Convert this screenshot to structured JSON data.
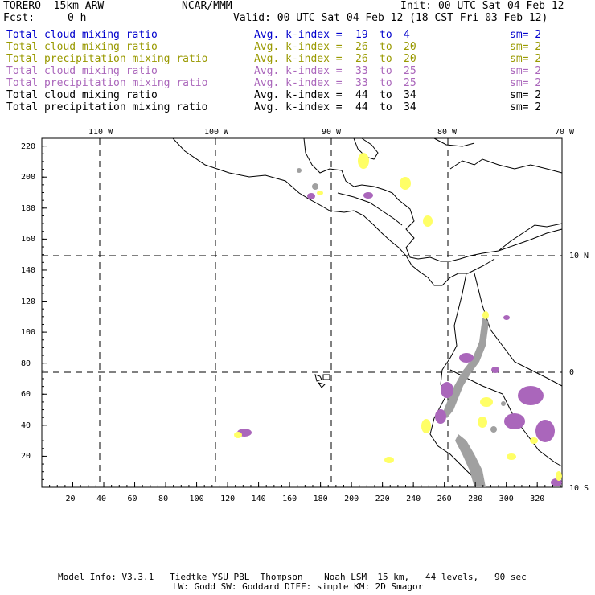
{
  "header": {
    "model_name": "TORERO  15km ARW",
    "center": "NCAR/MMM",
    "init": "Init: 00 UTC Sat 04 Feb 12",
    "fcst_label": "Fcst:",
    "fcst_value": "0 h",
    "valid": "Valid: 00 UTC Sat 04 Feb 12 (18 CST Fri 03 Feb 12)"
  },
  "legend": [
    {
      "field": "Total cloud mixing ratio",
      "kindex": "Avg. k-index =",
      "from": "19",
      "to_word": "to",
      "to": "4",
      "sm": "sm= 2",
      "color": "#0000cc"
    },
    {
      "field": "Total cloud mixing ratio",
      "kindex": "Avg. k-index =",
      "from": "26",
      "to_word": "to",
      "to": "20",
      "sm": "sm= 2",
      "color": "#999900"
    },
    {
      "field": "Total precipitation mixing ratio",
      "kindex": "Avg. k-index =",
      "from": "26",
      "to_word": "to",
      "to": "20",
      "sm": "sm= 2",
      "color": "#999900"
    },
    {
      "field": "Total cloud mixing ratio",
      "kindex": "Avg. k-index =",
      "from": "33",
      "to_word": "to",
      "to": "25",
      "sm": "sm= 2",
      "color": "#aa66bb"
    },
    {
      "field": "Total precipitation mixing ratio",
      "kindex": "Avg. k-index =",
      "from": "33",
      "to_word": "to",
      "to": "25",
      "sm": "sm= 2",
      "color": "#aa66bb"
    },
    {
      "field": "Total cloud mixing ratio",
      "kindex": "Avg. k-index =",
      "from": "44",
      "to_word": "to",
      "to": "34",
      "sm": "sm= 2",
      "color": "#000000"
    },
    {
      "field": "Total precipitation mixing ratio",
      "kindex": "Avg. k-index =",
      "from": "44",
      "to_word": "to",
      "to": "34",
      "sm": "sm= 2",
      "color": "#000000"
    }
  ],
  "map": {
    "lon_labels": [
      "110 W",
      "100 W",
      "90 W",
      "80 W",
      "70 W"
    ],
    "lat_labels": [
      "10 N",
      "0",
      "10 S"
    ],
    "y_ticks": [
      "220",
      "200",
      "180",
      "160",
      "140",
      "120",
      "100",
      "80",
      "60",
      "40",
      "20"
    ],
    "x_ticks": [
      "20",
      "40",
      "60",
      "80",
      "100",
      "120",
      "140",
      "160",
      "180",
      "200",
      "220",
      "240",
      "260",
      "280",
      "300",
      "320"
    ],
    "x_range": [
      0,
      336
    ],
    "y_range": [
      0,
      225
    ],
    "colors": {
      "yellow": "#ffff66",
      "purple": "#aa66bb",
      "gray": "#a0a0a0",
      "coast": "#000000",
      "grid": "#000000"
    }
  },
  "footer": {
    "line1": "Model Info: V3.3.1   Tiedtke YSU PBL  Thompson    Noah LSM  15 km,   44 levels,   90 sec",
    "line2": "LW: Godd SW: Goddard DIFF: simple KM: 2D Smagor"
  }
}
